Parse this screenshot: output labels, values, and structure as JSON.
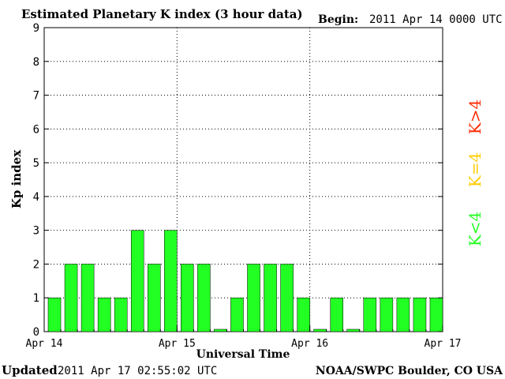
{
  "header": {
    "title": "Estimated Planetary K index (3 hour data)",
    "begin_label": "Begin:",
    "begin_value": "2011 Apr 14 0000 UTC"
  },
  "footer": {
    "updated_label": "Updated",
    "updated_value": "2011 Apr 17 02:55:02 UTC",
    "source": "NOAA/SWPC Boulder, CO USA"
  },
  "legend": {
    "items": [
      {
        "label": "K>4",
        "color": "#ff2a00"
      },
      {
        "label": "K=4",
        "color": "#ffcc00"
      },
      {
        "label": "K<4",
        "color": "#22ff22"
      }
    ]
  },
  "chart_data": {
    "type": "bar",
    "title": "Estimated Planetary K index (3 hour data)",
    "xlabel": "Universal Time",
    "ylabel": "Kp index",
    "ylim": [
      0,
      9
    ],
    "yticks": [
      0,
      1,
      2,
      3,
      4,
      5,
      6,
      7,
      8,
      9
    ],
    "xticks": [
      "Apr 14",
      "Apr 15",
      "Apr 16",
      "Apr 17"
    ],
    "grid": true,
    "bar_color": "#22ff22",
    "values": [
      1,
      2,
      2,
      1,
      1,
      3,
      2,
      3,
      2,
      2,
      0,
      1,
      2,
      2,
      2,
      1,
      0,
      1,
      0,
      1,
      1,
      1,
      1,
      1
    ]
  }
}
